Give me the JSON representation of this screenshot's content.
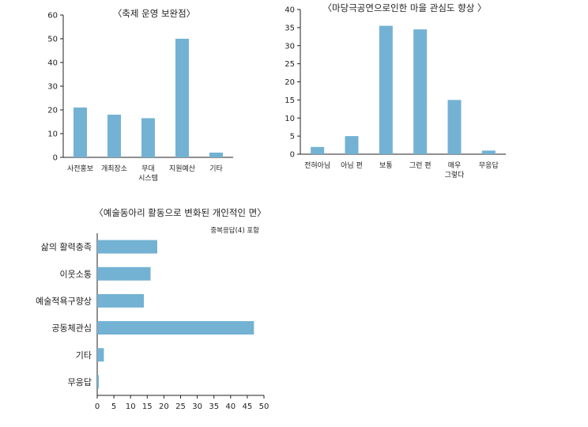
{
  "colors": {
    "bar": "#73b2d3",
    "axis": "#222222"
  },
  "chart_data": [
    {
      "type": "bar",
      "title": "〈축제 운영 보완점〉",
      "categories": [
        [
          "사전홍보"
        ],
        [
          "개최장소"
        ],
        [
          "무대",
          "시스템"
        ],
        [
          "지원예산"
        ],
        [
          "기타"
        ]
      ],
      "values": [
        21,
        18,
        16.5,
        50,
        2
      ],
      "ylim": [
        0,
        60
      ],
      "yticks": [
        0,
        10,
        20,
        30,
        40,
        50,
        60
      ],
      "grid": false
    },
    {
      "type": "bar",
      "title": "〈마당극공연으로인한 마을 관심도 향상 〉",
      "categories": [
        [
          "전혀아님"
        ],
        [
          "아님 편"
        ],
        [
          "보통"
        ],
        [
          "그런 편"
        ],
        [
          "매우",
          "그렇다"
        ],
        [
          "무응답"
        ]
      ],
      "values": [
        2,
        5,
        35.5,
        34.5,
        15,
        1
      ],
      "ylim": [
        0,
        40
      ],
      "yticks": [
        0,
        5,
        10,
        15,
        20,
        25,
        30,
        35,
        40
      ],
      "grid": false
    },
    {
      "type": "bar",
      "orientation": "horizontal",
      "title": "〈예술동아리 활동으로 변화된 개인적인 면〉",
      "note": "중복응답(4) 포함",
      "categories": [
        "삶의 활력충족",
        "이웃소통",
        "예술적욕구향상",
        "공동체관심",
        "기타",
        "무응답"
      ],
      "values": [
        18,
        16,
        14,
        47,
        2,
        0.5
      ],
      "xlim": [
        0,
        50
      ],
      "xticks": [
        0,
        5,
        10,
        15,
        20,
        25,
        30,
        35,
        40,
        45,
        50
      ],
      "grid": false
    }
  ]
}
